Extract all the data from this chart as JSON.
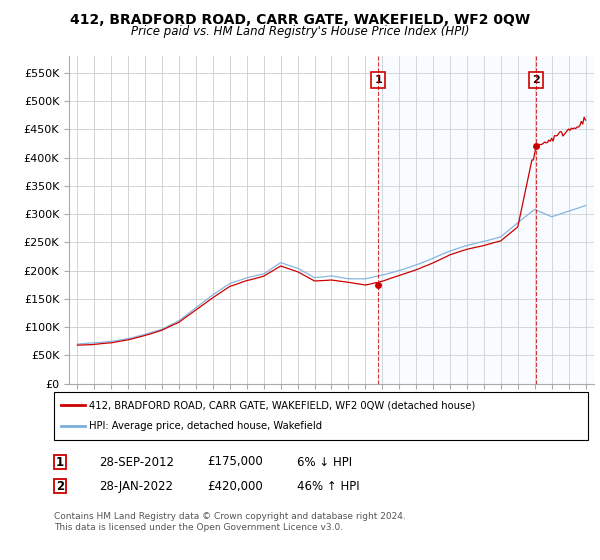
{
  "title": "412, BRADFORD ROAD, CARR GATE, WAKEFIELD, WF2 0QW",
  "subtitle": "Price paid vs. HM Land Registry's House Price Index (HPI)",
  "ylabel_ticks": [
    "£0",
    "£50K",
    "£100K",
    "£150K",
    "£200K",
    "£250K",
    "£300K",
    "£350K",
    "£400K",
    "£450K",
    "£500K",
    "£550K"
  ],
  "ytick_values": [
    0,
    50000,
    100000,
    150000,
    200000,
    250000,
    300000,
    350000,
    400000,
    450000,
    500000,
    550000
  ],
  "ylim": [
    0,
    580000
  ],
  "sale1_x": 2012.75,
  "sale1_price": 175000,
  "sale2_x": 2022.08,
  "sale2_price": 420000,
  "legend_house_label": "412, BRADFORD ROAD, CARR GATE, WAKEFIELD, WF2 0QW (detached house)",
  "legend_hpi_label": "HPI: Average price, detached house, Wakefield",
  "house_color": "#cc0000",
  "hpi_color": "#7aaedc",
  "shade_color": "#ddeeff",
  "vline_color": "#cc0000",
  "background_color": "#ffffff",
  "plot_bg_color": "#ffffff",
  "grid_color": "#cccccc",
  "footer": "Contains HM Land Registry data © Crown copyright and database right 2024.\nThis data is licensed under the Open Government Licence v3.0."
}
